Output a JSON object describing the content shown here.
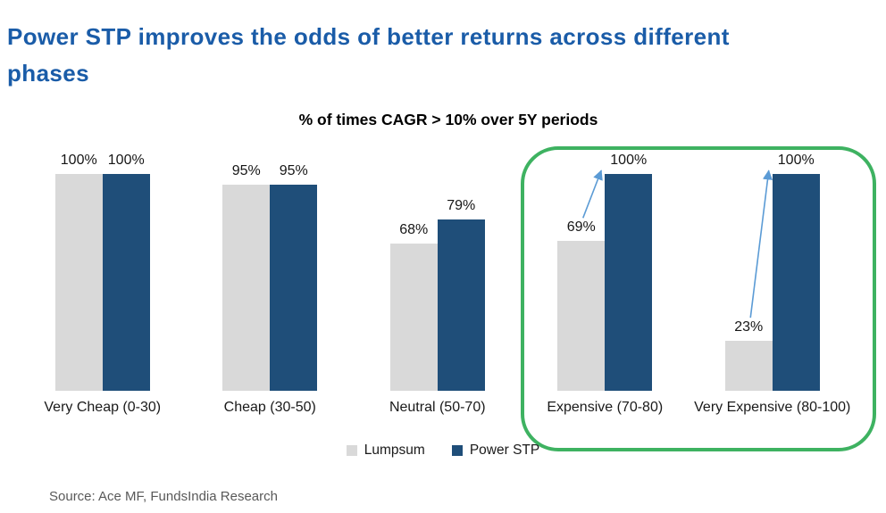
{
  "title": "Power STP improves the odds of better returns across different phases",
  "source": "Source: Ace MF, FundsIndia Research",
  "colors": {
    "title_text": "#1a5ca8",
    "lumpsum_bar": "#d9d9d9",
    "power_stp_bar": "#1f4e79",
    "highlight_border": "#3eb261",
    "arrow": "#5b9bd5",
    "source_text": "#595959"
  },
  "legend": {
    "items": [
      {
        "label": "Lumpsum",
        "color": "#d9d9d9"
      },
      {
        "label": "Power STP",
        "color": "#1f4e79"
      }
    ]
  },
  "chart_data": {
    "type": "bar",
    "title": "% of times CAGR > 10% over 5Y periods",
    "categories": [
      "Very Cheap (0-30)",
      "Cheap (30-50)",
      "Neutral (50-70)",
      "Expensive (70-80)",
      "Very Expensive (80-100)"
    ],
    "series": [
      {
        "name": "Lumpsum",
        "color": "#d9d9d9",
        "values": [
          100,
          95,
          68,
          69,
          23
        ]
      },
      {
        "name": "Power STP",
        "color": "#1f4e79",
        "values": [
          100,
          95,
          79,
          100,
          100
        ]
      }
    ],
    "value_label_format": "{v}%",
    "ylim": [
      0,
      100
    ],
    "grid": false,
    "axes_visible": false,
    "legend_position": "bottom",
    "highlighted_categories": [
      "Expensive (70-80)",
      "Very Expensive (80-100)"
    ],
    "annotations": [
      {
        "type": "arrow",
        "category": "Expensive (70-80)",
        "from_series": "Lumpsum",
        "to_series": "Power STP"
      },
      {
        "type": "arrow",
        "category": "Very Expensive (80-100)",
        "from_series": "Lumpsum",
        "to_series": "Power STP"
      }
    ]
  }
}
